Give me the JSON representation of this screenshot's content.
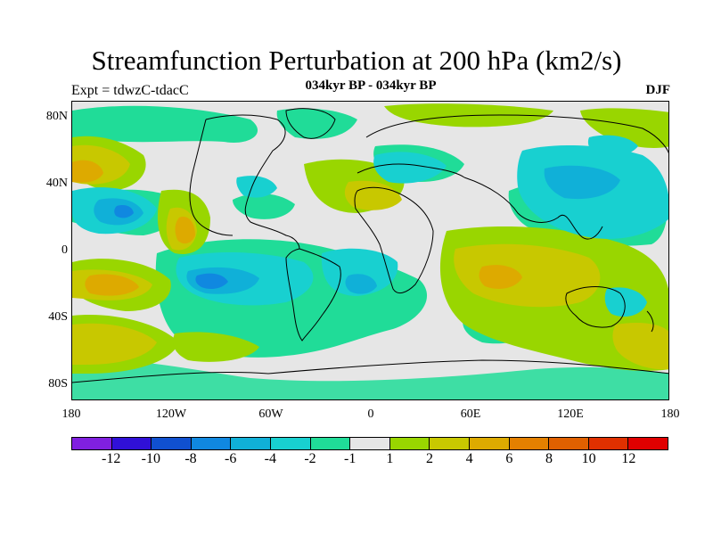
{
  "title": "Streamfunction Perturbation at 200 hPa (km2/s)",
  "subtitle": "034kyr BP - 034kyr BP",
  "expt_label": "Expt = tdwzC-tdacC",
  "season": "DJF",
  "y_ticks": [
    "80N",
    "40N",
    "0",
    "40S",
    "80S"
  ],
  "x_ticks": [
    "180",
    "120W",
    "60W",
    "0",
    "60E",
    "120E",
    "180"
  ],
  "colorbar": {
    "colors": [
      "#8020e0",
      "#3010d8",
      "#1050d0",
      "#1088e0",
      "#10b0d8",
      "#18d0d0",
      "#20dc98",
      "#e6e6e6",
      "#99d600",
      "#c8c800",
      "#ddaa00",
      "#e48000",
      "#e06000",
      "#e03000",
      "#e00000"
    ],
    "labels": [
      "-12",
      "-10",
      "-8",
      "-6",
      "-4",
      "-2",
      "-1",
      "1",
      "2",
      "4",
      "6",
      "8",
      "10",
      "12"
    ]
  }
}
